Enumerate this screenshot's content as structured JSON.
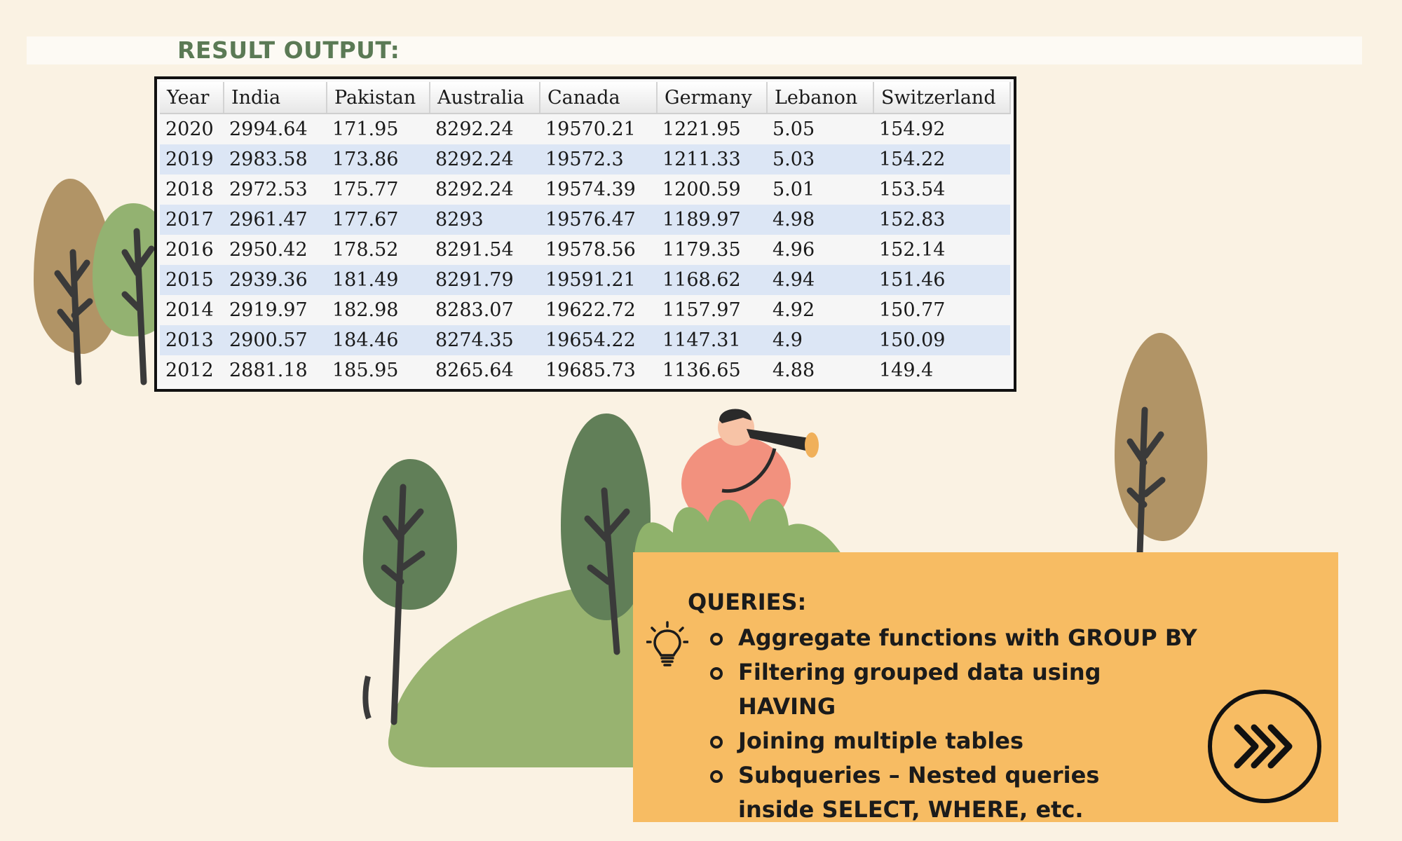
{
  "header": {
    "title": "RESULT OUTPUT:"
  },
  "result_table": {
    "columns": [
      "Year",
      "India",
      "Pakistan",
      "Australia",
      "Canada",
      "Germany",
      "Lebanon",
      "Switzerland"
    ],
    "rows": [
      [
        "2020",
        "2994.64",
        "171.95",
        "8292.24",
        "19570.21",
        "1221.95",
        "5.05",
        "154.92"
      ],
      [
        "2019",
        "2983.58",
        "173.86",
        "8292.24",
        "19572.3",
        "1211.33",
        "5.03",
        "154.22"
      ],
      [
        "2018",
        "2972.53",
        "175.77",
        "8292.24",
        "19574.39",
        "1200.59",
        "5.01",
        "153.54"
      ],
      [
        "2017",
        "2961.47",
        "177.67",
        "8293",
        "19576.47",
        "1189.97",
        "4.98",
        "152.83"
      ],
      [
        "2016",
        "2950.42",
        "178.52",
        "8291.54",
        "19578.56",
        "1179.35",
        "4.96",
        "152.14"
      ],
      [
        "2015",
        "2939.36",
        "181.49",
        "8291.79",
        "19591.21",
        "1168.62",
        "4.94",
        "151.46"
      ],
      [
        "2014",
        "2919.97",
        "182.98",
        "8283.07",
        "19622.72",
        "1157.97",
        "4.92",
        "150.77"
      ],
      [
        "2013",
        "2900.57",
        "184.46",
        "8274.35",
        "19654.22",
        "1147.31",
        "4.9",
        "150.09"
      ],
      [
        "2012",
        "2881.18",
        "185.95",
        "8265.64",
        "19685.73",
        "1136.65",
        "4.88",
        "149.4"
      ]
    ]
  },
  "queries": {
    "title": "QUERIES:",
    "items": [
      "Aggregate functions with GROUP BY",
      "Filtering grouped data using HAVING",
      "Joining multiple tables",
      "Subqueries – Nested queries inside SELECT, WHERE, etc."
    ],
    "icon": "lightbulb-icon"
  },
  "navigation": {
    "next_icon": "chevrons-right-icon"
  },
  "colors": {
    "background": "#faf2e3",
    "title_green": "#5b7a55",
    "queries_box": "#f7bc63",
    "alt_row": "#dce6f5"
  }
}
